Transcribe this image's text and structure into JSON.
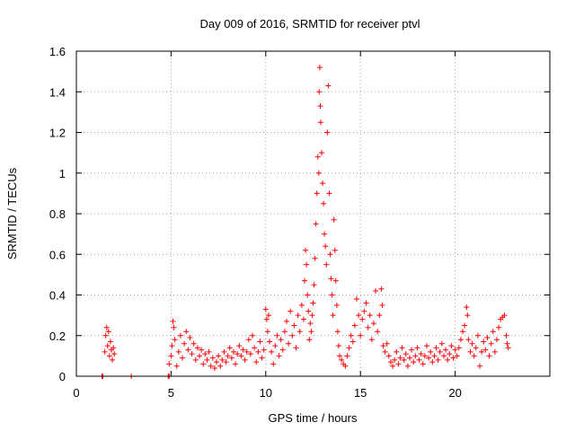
{
  "chart_data": {
    "type": "scatter",
    "title": "Day 009 of 2016, SRMTID for receiver ptvl",
    "xlabel": "GPS time / hours",
    "ylabel": "SRMTID / TECUs",
    "xlim": [
      0,
      25
    ],
    "ylim": [
      0,
      1.6
    ],
    "grid": true,
    "xticks": [
      0,
      5,
      10,
      15,
      20
    ],
    "yticks": [
      0,
      0.2,
      0.4,
      0.6,
      0.8,
      1,
      1.2,
      1.4,
      1.6
    ],
    "xtick_labels": [
      "0",
      "5",
      "10",
      "15",
      "20"
    ],
    "ytick_labels": [
      "0",
      "0.2",
      "0.4",
      "0.6",
      "0.8",
      "1",
      "1.2",
      "1.4",
      "1.6"
    ],
    "marker": "+",
    "marker_color": "#ff0000",
    "series": [
      {
        "name": "SRMTID",
        "points": [
          [
            1.35,
            0.0
          ],
          [
            1.4,
            0.0
          ],
          [
            2.9,
            0.0
          ],
          [
            4.85,
            0.0
          ],
          [
            4.9,
            0.0
          ],
          [
            1.5,
            0.12
          ],
          [
            1.55,
            0.2
          ],
          [
            1.6,
            0.24
          ],
          [
            1.65,
            0.15
          ],
          [
            1.7,
            0.22
          ],
          [
            1.75,
            0.1
          ],
          [
            1.8,
            0.17
          ],
          [
            1.85,
            0.13
          ],
          [
            1.9,
            0.08
          ],
          [
            1.95,
            0.14
          ],
          [
            2.0,
            0.11
          ],
          [
            4.9,
            0.06
          ],
          [
            5.0,
            0.1
          ],
          [
            5.05,
            0.15
          ],
          [
            5.1,
            0.27
          ],
          [
            5.15,
            0.24
          ],
          [
            5.2,
            0.18
          ],
          [
            5.3,
            0.05
          ],
          [
            5.4,
            0.12
          ],
          [
            5.5,
            0.2
          ],
          [
            5.6,
            0.09
          ],
          [
            5.7,
            0.16
          ],
          [
            5.8,
            0.22
          ],
          [
            5.9,
            0.13
          ],
          [
            6.0,
            0.19
          ],
          [
            6.1,
            0.11
          ],
          [
            6.2,
            0.16
          ],
          [
            6.3,
            0.08
          ],
          [
            6.4,
            0.14
          ],
          [
            6.5,
            0.1
          ],
          [
            6.6,
            0.13
          ],
          [
            6.7,
            0.06
          ],
          [
            6.8,
            0.11
          ],
          [
            6.9,
            0.08
          ],
          [
            7.0,
            0.12
          ],
          [
            7.1,
            0.05
          ],
          [
            7.2,
            0.09
          ],
          [
            7.3,
            0.04
          ],
          [
            7.4,
            0.07
          ],
          [
            7.5,
            0.1
          ],
          [
            7.6,
            0.05
          ],
          [
            7.7,
            0.08
          ],
          [
            7.8,
            0.12
          ],
          [
            7.9,
            0.07
          ],
          [
            8.0,
            0.1
          ],
          [
            8.1,
            0.14
          ],
          [
            8.2,
            0.09
          ],
          [
            8.3,
            0.12
          ],
          [
            8.4,
            0.06
          ],
          [
            8.5,
            0.11
          ],
          [
            8.6,
            0.15
          ],
          [
            8.7,
            0.1
          ],
          [
            8.8,
            0.13
          ],
          [
            8.9,
            0.08
          ],
          [
            9.0,
            0.12
          ],
          [
            9.1,
            0.18
          ],
          [
            9.2,
            0.11
          ],
          [
            9.3,
            0.2
          ],
          [
            9.4,
            0.14
          ],
          [
            9.5,
            0.07
          ],
          [
            9.6,
            0.12
          ],
          [
            9.7,
            0.17
          ],
          [
            9.8,
            0.09
          ],
          [
            9.9,
            0.13
          ],
          [
            10.0,
            0.33
          ],
          [
            10.05,
            0.28
          ],
          [
            10.1,
            0.22
          ],
          [
            10.15,
            0.3
          ],
          [
            10.2,
            0.17
          ],
          [
            10.3,
            0.12
          ],
          [
            10.4,
            0.06
          ],
          [
            10.5,
            0.15
          ],
          [
            10.6,
            0.2
          ],
          [
            10.7,
            0.1
          ],
          [
            10.8,
            0.18
          ],
          [
            10.9,
            0.13
          ],
          [
            11.0,
            0.22
          ],
          [
            11.1,
            0.27
          ],
          [
            11.2,
            0.16
          ],
          [
            11.3,
            0.32
          ],
          [
            11.4,
            0.2
          ],
          [
            11.5,
            0.25
          ],
          [
            11.6,
            0.14
          ],
          [
            11.7,
            0.3
          ],
          [
            11.8,
            0.22
          ],
          [
            11.9,
            0.35
          ],
          [
            12.0,
            0.28
          ],
          [
            12.05,
            0.47
          ],
          [
            12.1,
            0.62
          ],
          [
            12.15,
            0.55
          ],
          [
            12.2,
            0.4
          ],
          [
            12.25,
            0.32
          ],
          [
            12.3,
            0.18
          ],
          [
            12.35,
            0.26
          ],
          [
            12.4,
            0.22
          ],
          [
            12.45,
            0.3
          ],
          [
            12.5,
            0.36
          ],
          [
            12.55,
            0.45
          ],
          [
            12.6,
            0.58
          ],
          [
            12.65,
            0.75
          ],
          [
            12.7,
            0.9
          ],
          [
            12.75,
            1.08
          ],
          [
            12.8,
            1.0
          ],
          [
            12.82,
            1.4
          ],
          [
            12.85,
            1.52
          ],
          [
            12.88,
            1.33
          ],
          [
            12.9,
            1.25
          ],
          [
            12.95,
            1.1
          ],
          [
            13.0,
            0.95
          ],
          [
            13.05,
            0.85
          ],
          [
            13.1,
            0.7
          ],
          [
            13.15,
            0.64
          ],
          [
            13.2,
            0.55
          ],
          [
            13.25,
            1.2
          ],
          [
            13.3,
            1.43
          ],
          [
            13.35,
            0.9
          ],
          [
            13.4,
            0.6
          ],
          [
            13.45,
            0.48
          ],
          [
            13.5,
            0.4
          ],
          [
            13.55,
            0.3
          ],
          [
            13.6,
            0.77
          ],
          [
            13.65,
            0.62
          ],
          [
            13.7,
            0.47
          ],
          [
            13.75,
            0.35
          ],
          [
            13.8,
            0.22
          ],
          [
            13.85,
            0.15
          ],
          [
            13.9,
            0.1
          ],
          [
            14.0,
            0.08
          ],
          [
            14.1,
            0.06
          ],
          [
            14.2,
            0.05
          ],
          [
            14.3,
            0.1
          ],
          [
            14.4,
            0.14
          ],
          [
            14.5,
            0.2
          ],
          [
            14.6,
            0.17
          ],
          [
            14.7,
            0.25
          ],
          [
            14.8,
            0.38
          ],
          [
            14.9,
            0.3
          ],
          [
            15.0,
            0.2
          ],
          [
            15.1,
            0.28
          ],
          [
            15.2,
            0.32
          ],
          [
            15.3,
            0.36
          ],
          [
            15.4,
            0.24
          ],
          [
            15.5,
            0.3
          ],
          [
            15.6,
            0.18
          ],
          [
            15.7,
            0.26
          ],
          [
            15.8,
            0.42
          ],
          [
            15.9,
            0.22
          ],
          [
            16.0,
            0.3
          ],
          [
            16.1,
            0.43
          ],
          [
            16.15,
            0.35
          ],
          [
            16.2,
            0.15
          ],
          [
            16.3,
            0.12
          ],
          [
            16.4,
            0.16
          ],
          [
            16.5,
            0.1
          ],
          [
            16.6,
            0.07
          ],
          [
            16.7,
            0.05
          ],
          [
            16.8,
            0.08
          ],
          [
            16.9,
            0.12
          ],
          [
            17.0,
            0.06
          ],
          [
            17.1,
            0.09
          ],
          [
            17.2,
            0.14
          ],
          [
            17.3,
            0.08
          ],
          [
            17.4,
            0.11
          ],
          [
            17.5,
            0.05
          ],
          [
            17.6,
            0.09
          ],
          [
            17.7,
            0.13
          ],
          [
            17.8,
            0.07
          ],
          [
            17.9,
            0.1
          ],
          [
            18.0,
            0.14
          ],
          [
            18.1,
            0.08
          ],
          [
            18.2,
            0.11
          ],
          [
            18.3,
            0.06
          ],
          [
            18.4,
            0.1
          ],
          [
            18.5,
            0.15
          ],
          [
            18.6,
            0.09
          ],
          [
            18.7,
            0.12
          ],
          [
            18.8,
            0.07
          ],
          [
            18.9,
            0.1
          ],
          [
            19.0,
            0.14
          ],
          [
            19.1,
            0.08
          ],
          [
            19.2,
            0.12
          ],
          [
            19.3,
            0.16
          ],
          [
            19.4,
            0.1
          ],
          [
            19.5,
            0.13
          ],
          [
            19.6,
            0.08
          ],
          [
            19.7,
            0.11
          ],
          [
            19.8,
            0.15
          ],
          [
            19.9,
            0.09
          ],
          [
            20.0,
            0.13
          ],
          [
            20.1,
            0.1
          ],
          [
            20.2,
            0.14
          ],
          [
            20.3,
            0.18
          ],
          [
            20.4,
            0.22
          ],
          [
            20.5,
            0.25
          ],
          [
            20.6,
            0.34
          ],
          [
            20.65,
            0.3
          ],
          [
            20.7,
            0.18
          ],
          [
            20.8,
            0.12
          ],
          [
            20.9,
            0.16
          ],
          [
            21.0,
            0.1
          ],
          [
            21.1,
            0.14
          ],
          [
            21.2,
            0.2
          ],
          [
            21.3,
            0.05
          ],
          [
            21.4,
            0.12
          ],
          [
            21.5,
            0.17
          ],
          [
            21.6,
            0.13
          ],
          [
            21.7,
            0.19
          ],
          [
            21.8,
            0.1
          ],
          [
            21.9,
            0.16
          ],
          [
            22.0,
            0.22
          ],
          [
            22.1,
            0.12
          ],
          [
            22.2,
            0.18
          ],
          [
            22.3,
            0.24
          ],
          [
            22.4,
            0.28
          ],
          [
            22.5,
            0.29
          ],
          [
            22.6,
            0.3
          ],
          [
            22.7,
            0.2
          ],
          [
            22.75,
            0.16
          ],
          [
            22.8,
            0.14
          ]
        ]
      }
    ]
  }
}
